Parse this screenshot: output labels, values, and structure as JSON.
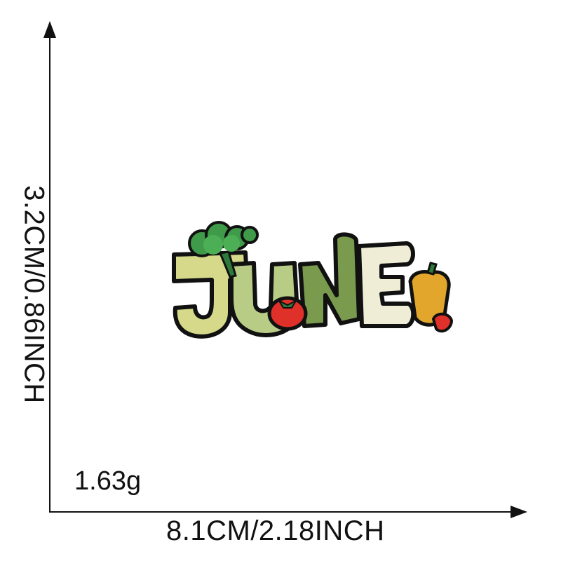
{
  "measurements": {
    "height": "3.2CM/0.86INCH",
    "width": "8.1CM/2.18INCH",
    "weight": "1.63g"
  },
  "product": {
    "patch_text": "JUNE"
  },
  "colors": {
    "axis": "#111111",
    "outline": "#111111",
    "j_fill": "#d6d98a",
    "u_fill": "#b9cc86",
    "n_fill": "#7a9a4e",
    "e_fill": "#efedd6",
    "broccoli": "#3f9a4a",
    "tomato": "#e0302a",
    "pepper": "#e1a62b"
  }
}
